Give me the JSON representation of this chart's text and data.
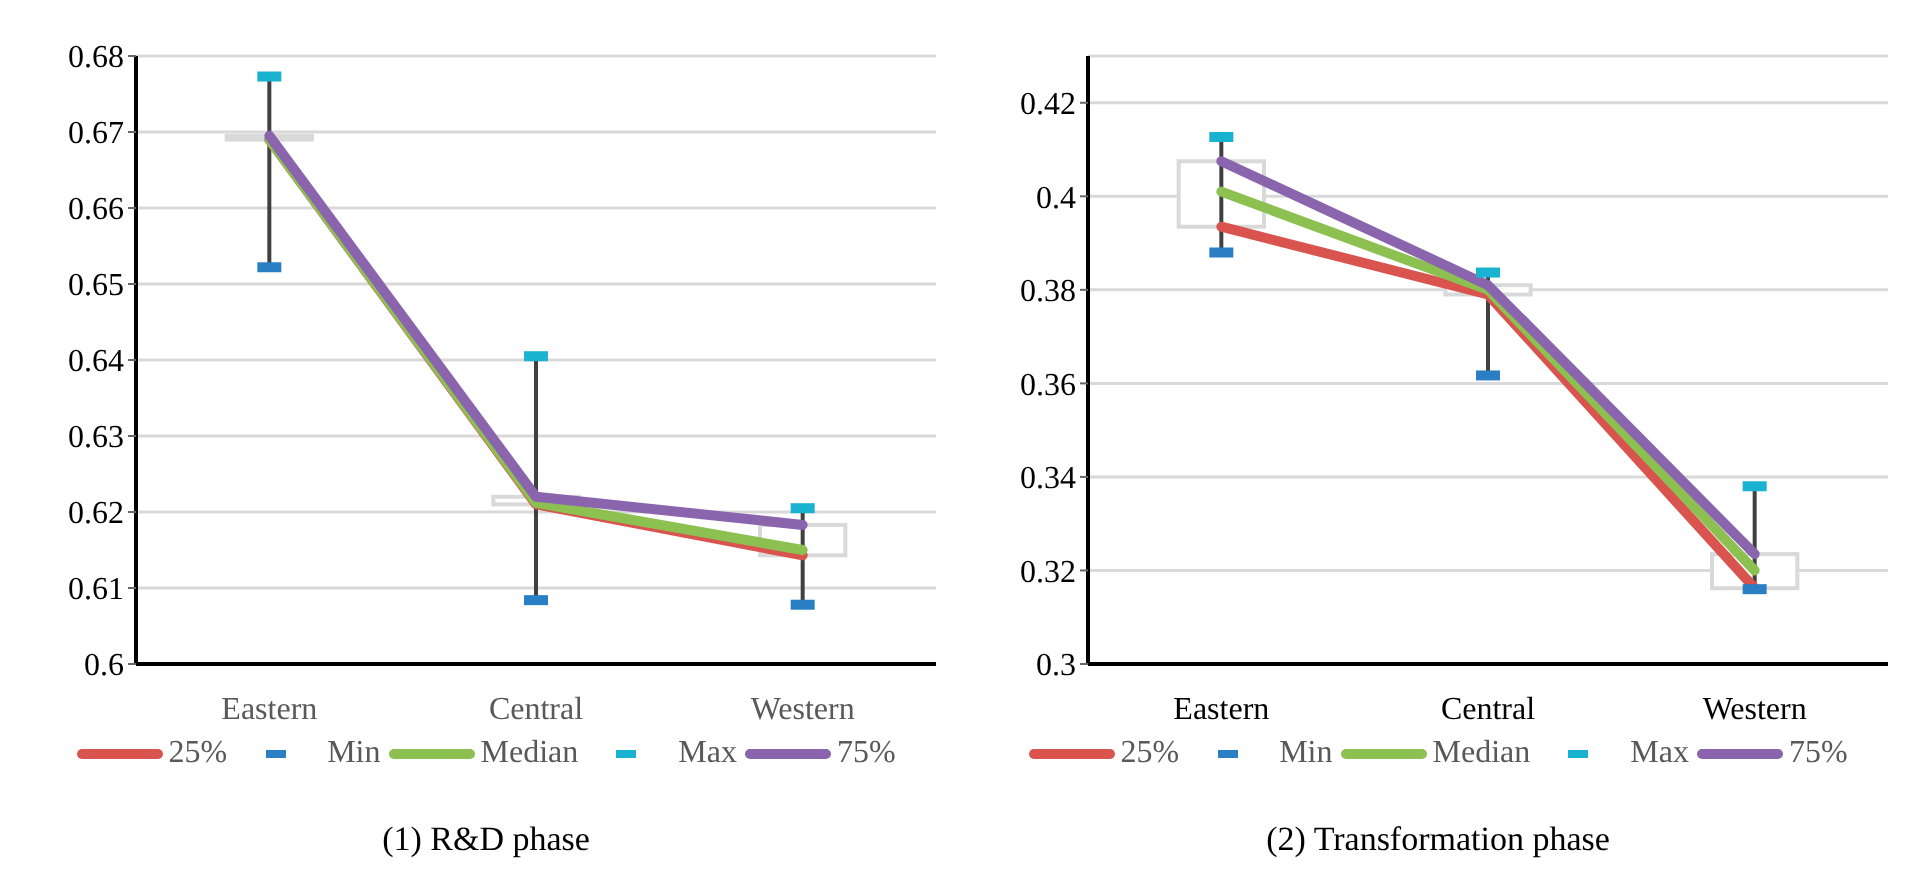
{
  "chart_data": [
    {
      "type": "line",
      "title": "(1) R&D phase",
      "categories": [
        "Eastern",
        "Central",
        "Western"
      ],
      "ylim": [
        0.6,
        0.68
      ],
      "yticks": [
        0.6,
        0.61,
        0.62,
        0.63,
        0.64,
        0.65,
        0.66,
        0.67,
        0.68
      ],
      "grid": "y",
      "legend": "bottom",
      "series": [
        {
          "name": "25%",
          "type": "line",
          "color": "#d9534f",
          "values": [
            0.669,
            0.621,
            0.6143
          ]
        },
        {
          "name": "Min",
          "type": "scatter",
          "color": "#2a7fc4",
          "values": [
            0.6522,
            0.6084,
            0.6078
          ]
        },
        {
          "name": "Median",
          "type": "line",
          "color": "#8cc152",
          "values": [
            0.669,
            0.6212,
            0.615
          ]
        },
        {
          "name": "Max",
          "type": "scatter",
          "color": "#19b2d0",
          "values": [
            0.6773,
            0.6405,
            0.6205
          ]
        },
        {
          "name": "75%",
          "type": "line",
          "color": "#8a65ad",
          "values": [
            0.6695,
            0.622,
            0.6183
          ]
        }
      ]
    },
    {
      "type": "line",
      "title": "(2) Transformation phase",
      "categories": [
        "Eastern",
        "Central",
        "Western"
      ],
      "ylim": [
        0.3,
        0.43
      ],
      "yticks": [
        0.3,
        0.32,
        0.34,
        0.36,
        0.38,
        0.4,
        0.42
      ],
      "grid": "y",
      "legend": "bottom",
      "series": [
        {
          "name": "25%",
          "type": "line",
          "color": "#d9534f",
          "values": [
            0.3935,
            0.379,
            0.3162
          ]
        },
        {
          "name": "Min",
          "type": "scatter",
          "color": "#2a7fc4",
          "values": [
            0.388,
            0.3617,
            0.316
          ]
        },
        {
          "name": "Median",
          "type": "line",
          "color": "#8cc152",
          "values": [
            0.401,
            0.38,
            0.32
          ]
        },
        {
          "name": "Max",
          "type": "scatter",
          "color": "#19b2d0",
          "values": [
            0.4127,
            0.3837,
            0.338
          ]
        },
        {
          "name": "75%",
          "type": "line",
          "color": "#8a65ad",
          "values": [
            0.4075,
            0.381,
            0.3235
          ]
        }
      ]
    }
  ]
}
